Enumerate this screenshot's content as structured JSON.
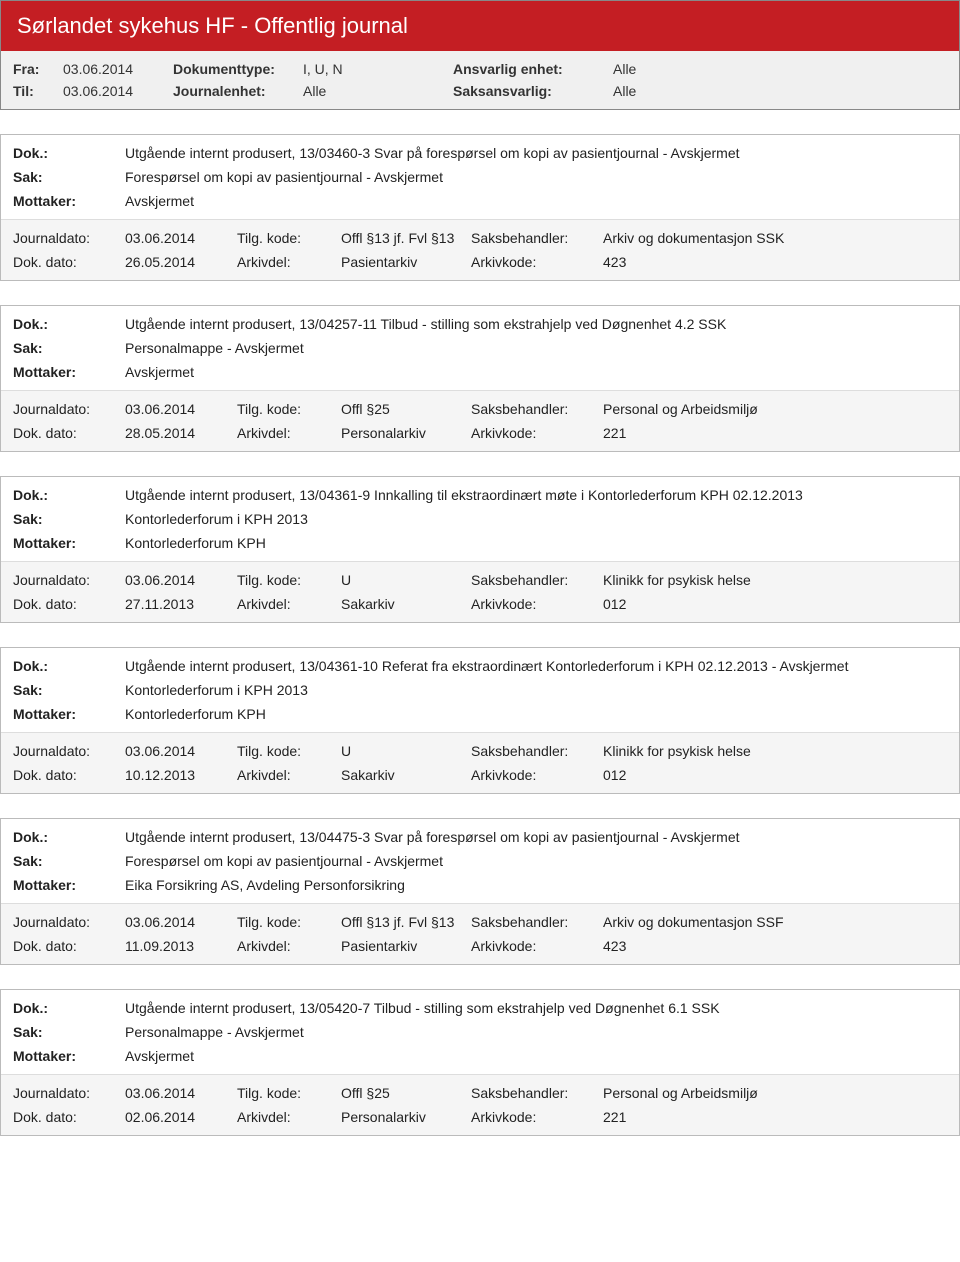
{
  "header": {
    "title": "Sørlandet sykehus HF - Offentlig journal"
  },
  "filters": {
    "fra_label": "Fra:",
    "fra_val": "03.06.2014",
    "til_label": "Til:",
    "til_val": "03.06.2014",
    "doktype_label": "Dokumenttype:",
    "doktype_val": "I, U, N",
    "journalenhet_label": "Journalenhet:",
    "journalenhet_val": "Alle",
    "ansvarlig_label": "Ansvarlig enhet:",
    "ansvarlig_val": "Alle",
    "saksansvarlig_label": "Saksansvarlig:",
    "saksansvarlig_val": "Alle"
  },
  "labels": {
    "dok": "Dok.:",
    "sak": "Sak:",
    "mottaker": "Mottaker:",
    "journaldato": "Journaldato:",
    "dokdato": "Dok. dato:",
    "tilgkode": "Tilg. kode:",
    "arkivdel": "Arkivdel:",
    "saksbehandler": "Saksbehandler:",
    "arkivkode": "Arkivkode:"
  },
  "entries": [
    {
      "dok": "Utgående internt produsert, 13/03460-3 Svar på forespørsel om kopi av pasientjournal - Avskjermet",
      "sak": "Forespørsel om kopi av pasientjournal - Avskjermet",
      "mottaker": "Avskjermet",
      "journaldato": "03.06.2014",
      "tilgkode": "Offl §13 jf. Fvl §13",
      "saksbehandler": "Arkiv og dokumentasjon SSK",
      "dokdato": "26.05.2014",
      "arkivdel": "Pasientarkiv",
      "arkivkode": "423"
    },
    {
      "dok": "Utgående internt produsert, 13/04257-11 Tilbud - stilling som ekstrahjelp ved Døgnenhet 4.2 SSK",
      "sak": "Personalmappe - Avskjermet",
      "mottaker": "Avskjermet",
      "journaldato": "03.06.2014",
      "tilgkode": "Offl §25",
      "saksbehandler": "Personal og Arbeidsmiljø",
      "dokdato": "28.05.2014",
      "arkivdel": "Personalarkiv",
      "arkivkode": "221"
    },
    {
      "dok": "Utgående internt produsert, 13/04361-9 Innkalling til ekstraordinært møte i Kontorlederforum KPH 02.12.2013",
      "sak": "Kontorlederforum i KPH 2013",
      "mottaker": "Kontorlederforum KPH",
      "journaldato": "03.06.2014",
      "tilgkode": "U",
      "saksbehandler": "Klinikk for psykisk helse",
      "dokdato": "27.11.2013",
      "arkivdel": "Sakarkiv",
      "arkivkode": "012"
    },
    {
      "dok": "Utgående internt produsert, 13/04361-10 Referat fra ekstraordinært Kontorlederforum i KPH  02.12.2013 - Avskjermet",
      "sak": "Kontorlederforum i KPH 2013",
      "mottaker": "Kontorlederforum KPH",
      "journaldato": "03.06.2014",
      "tilgkode": "U",
      "saksbehandler": "Klinikk for psykisk helse",
      "dokdato": "10.12.2013",
      "arkivdel": "Sakarkiv",
      "arkivkode": "012"
    },
    {
      "dok": "Utgående internt produsert, 13/04475-3 Svar på forespørsel om kopi av pasientjournal - Avskjermet",
      "sak": "Forespørsel om kopi av pasientjournal - Avskjermet",
      "mottaker": "Eika Forsikring AS, Avdeling Personforsikring",
      "journaldato": "03.06.2014",
      "tilgkode": "Offl §13 jf. Fvl §13",
      "saksbehandler": "Arkiv og dokumentasjon SSF",
      "dokdato": "11.09.2013",
      "arkivdel": "Pasientarkiv",
      "arkivkode": "423"
    },
    {
      "dok": "Utgående internt produsert, 13/05420-7 Tilbud - stilling som ekstrahjelp ved Døgnenhet 6.1 SSK",
      "sak": "Personalmappe - Avskjermet",
      "mottaker": "Avskjermet",
      "journaldato": "03.06.2014",
      "tilgkode": "Offl §25",
      "saksbehandler": "Personal og Arbeidsmiljø",
      "dokdato": "02.06.2014",
      "arkivdel": "Personalarkiv",
      "arkivkode": "221"
    }
  ]
}
